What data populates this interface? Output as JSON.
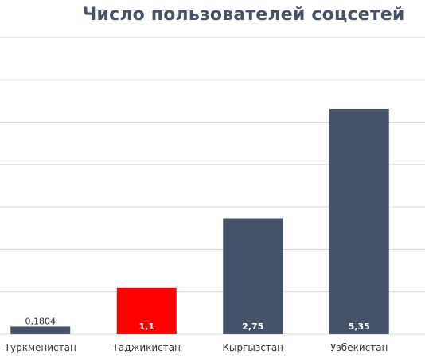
{
  "chart_data": {
    "type": "bar",
    "title": "Число пользователей соцсетей",
    "categories": [
      "Туркменистан",
      "Таджикистан",
      "Кыргызстан",
      "Узбекистан"
    ],
    "values": [
      0.1804,
      1.1,
      2.75,
      5.35
    ],
    "value_labels": [
      "0,1804",
      "1,1",
      "2,75",
      "5,35"
    ],
    "colors": [
      "#46526a",
      "#ff0000",
      "#46526a",
      "#46526a"
    ],
    "ylim": [
      0,
      7.05
    ],
    "grid": true,
    "xlabel": "",
    "ylabel": ""
  }
}
